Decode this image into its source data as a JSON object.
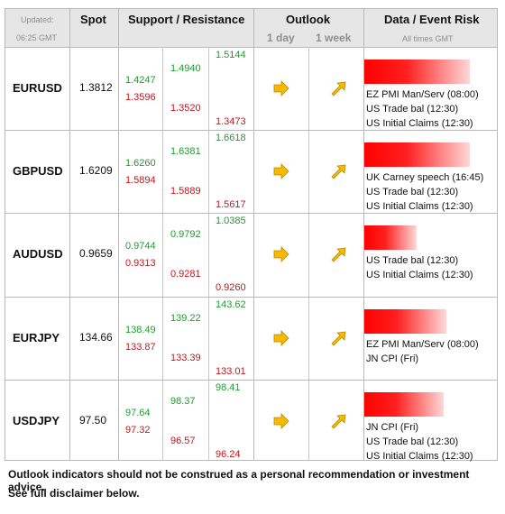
{
  "header": {
    "updated_label": "Updated:",
    "updated_time": "06:25 GMT",
    "spot": "Spot",
    "support_resistance": "Support / Resistance",
    "outlook": "Outlook",
    "outlook_1day": "1 day",
    "outlook_1week": "1 week",
    "data_event_risk": "Data / Event Risk",
    "all_times": "All times GMT"
  },
  "colors": {
    "resistance": "#1e9c2e",
    "support": "#c8141b",
    "arrow": "#f6b800",
    "bar": "#ff0000"
  },
  "icons": {
    "outlook_1day": "arrow-right-icon",
    "outlook_1week": "arrow-up-right-icon"
  },
  "rows": [
    {
      "pair": "EURUSD",
      "spot": "1.3812",
      "r1": "1.4247",
      "s1": "1.3596",
      "r2": "1.4940",
      "s2": "1.3520",
      "r3": "1.5144",
      "s3": "1.3473",
      "outlook_1day": "right",
      "outlook_1week": "up-right",
      "event_risk_level": 0.8,
      "events": [
        "EZ PMI Man/Serv (08:00)",
        "US Trade bal (12:30)",
        "US Initial Claims (12:30)"
      ]
    },
    {
      "pair": "GBPUSD",
      "spot": "1.6209",
      "r1": "1.6260",
      "s1": "1.5894",
      "r2": "1.6381",
      "s2": "1.5889",
      "r3": "1.6618",
      "s3": "1.5617",
      "outlook_1day": "right",
      "outlook_1week": "up-right",
      "event_risk_level": 0.8,
      "events": [
        "UK Carney speech (16:45)",
        "US Trade bal (12:30)",
        "US Initial Claims (12:30)"
      ]
    },
    {
      "pair": "AUDUSD",
      "spot": "0.9659",
      "r1": "0.9744",
      "s1": "0.9313",
      "r2": "0.9792",
      "s2": "0.9281",
      "r3": "1.0385",
      "s3": "0.9260",
      "outlook_1day": "right",
      "outlook_1week": "up-right",
      "event_risk_level": 0.4,
      "events": [
        "US Trade bal (12:30)",
        "US Initial Claims (12:30)"
      ]
    },
    {
      "pair": "EURJPY",
      "spot": "134.66",
      "r1": "138.49",
      "s1": "133.87",
      "r2": "139.22",
      "s2": "133.39",
      "r3": "143.62",
      "s3": "133.01",
      "outlook_1day": "right",
      "outlook_1week": "up-right",
      "event_risk_level": 0.62,
      "events": [
        "EZ PMI Man/Serv (08:00)",
        "JN CPI (Fri)"
      ]
    },
    {
      "pair": "USDJPY",
      "spot": "97.50",
      "r1": "97.64",
      "s1": "97.32",
      "r2": "98.37",
      "s2": "96.57",
      "r3": "98.41",
      "s3": "96.24",
      "outlook_1day": "right",
      "outlook_1week": "up-right",
      "event_risk_level": 0.6,
      "events": [
        "JN CPI (Fri)",
        "US Trade bal (12:30)",
        "US Initial Claims (12:30)"
      ]
    }
  ],
  "footer": {
    "line1": "Outlook indicators should not be construed as a personal recommendation or investment advice.",
    "line2": "See full disclaimer below."
  }
}
